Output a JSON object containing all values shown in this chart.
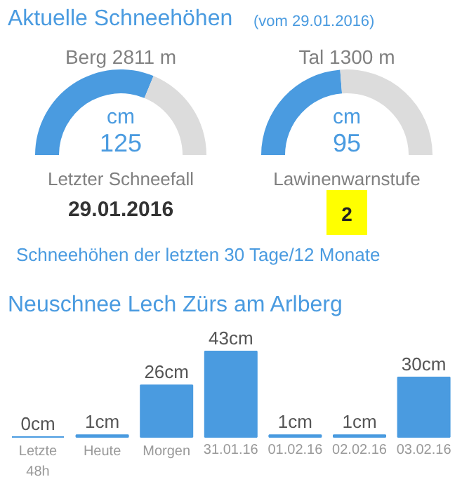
{
  "chart_data": [
    {
      "type": "other",
      "title": "Aktuelle Schneehöhen",
      "subtitle": "(vom 29.01.2016)",
      "annotations": [
        "Schneehöhen der letzten 30 Tage/12 Monate"
      ]
    },
    {
      "type": "donut",
      "title": "Berg 2811 m",
      "categories": [
        null,
        null
      ],
      "values": [
        62.5,
        37.5
      ],
      "colors": [
        "#4a9be0",
        "#dcdcdc"
      ],
      "annotations": [
        "cm",
        "125",
        "Letzter Schneefall",
        "29.01.2016"
      ]
    },
    {
      "type": "donut",
      "title": "Tal 1300 m",
      "categories": [
        null,
        null
      ],
      "values": [
        47.5,
        52.5
      ],
      "colors": [
        "#4a9be0",
        "#dcdcdc"
      ],
      "annotations": [
        "cm",
        "95",
        "Lawinenwarnstufe",
        "2"
      ]
    },
    {
      "type": "bar",
      "title": "Neuschnee Lech Zürs am Arlberg",
      "categories": [
        "Letzte\n48h",
        "Heute",
        "Morgen",
        "31.01.16",
        "01.02.16",
        "02.02.16",
        "03.02.16"
      ],
      "values": [
        0,
        1,
        26,
        43,
        1,
        1,
        30
      ],
      "color": "#4a9be0",
      "value_labels": [
        "0cm",
        "1cm",
        "26cm",
        "43cm",
        "1cm",
        "1cm",
        "30cm"
      ]
    }
  ]
}
